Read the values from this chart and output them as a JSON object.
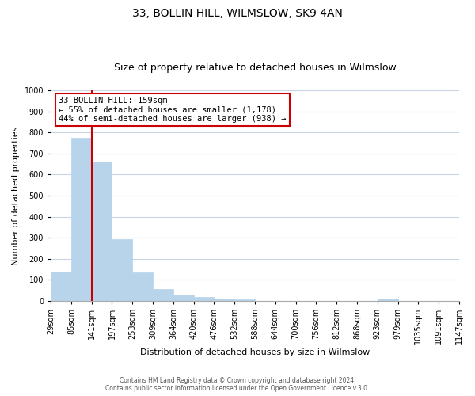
{
  "title": "33, BOLLIN HILL, WILMSLOW, SK9 4AN",
  "subtitle": "Size of property relative to detached houses in Wilmslow",
  "bar_values": [
    140,
    775,
    660,
    295,
    135,
    57,
    32,
    18,
    10,
    7,
    0,
    0,
    0,
    0,
    0,
    0,
    10,
    0,
    0,
    0
  ],
  "x_labels": [
    "29sqm",
    "85sqm",
    "141sqm",
    "197sqm",
    "253sqm",
    "309sqm",
    "364sqm",
    "420sqm",
    "476sqm",
    "532sqm",
    "588sqm",
    "644sqm",
    "700sqm",
    "756sqm",
    "812sqm",
    "868sqm",
    "923sqm",
    "979sqm",
    "1035sqm",
    "1091sqm",
    "1147sqm"
  ],
  "bar_color": "#b8d4ea",
  "bar_edge_color": "#b8d4ea",
  "vline_x": 2.0,
  "vline_color": "#cc0000",
  "ylabel": "Number of detached properties",
  "xlabel": "Distribution of detached houses by size in Wilmslow",
  "ylim": [
    0,
    1000
  ],
  "yticks": [
    0,
    100,
    200,
    300,
    400,
    500,
    600,
    700,
    800,
    900,
    1000
  ],
  "annotation_title": "33 BOLLIN HILL: 159sqm",
  "annotation_line1": "← 55% of detached houses are smaller (1,178)",
  "annotation_line2": "44% of semi-detached houses are larger (938) →",
  "annotation_box_color": "#ffffff",
  "annotation_box_edge": "#cc0000",
  "footer_line1": "Contains HM Land Registry data © Crown copyright and database right 2024.",
  "footer_line2": "Contains public sector information licensed under the Open Government Licence v.3.0.",
  "bg_color": "#ffffff",
  "grid_color": "#c8d4e4",
  "title_fontsize": 10,
  "subtitle_fontsize": 9,
  "axis_label_fontsize": 8,
  "tick_fontsize": 7
}
